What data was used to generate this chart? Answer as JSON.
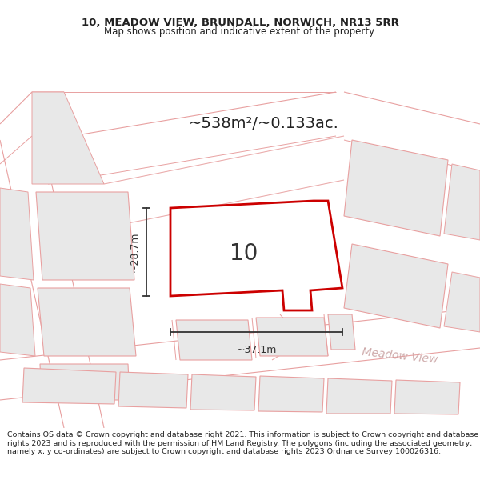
{
  "title_line1": "10, MEADOW VIEW, BRUNDALL, NORWICH, NR13 5RR",
  "title_line2": "Map shows position and indicative extent of the property.",
  "area_text": "~538m²/~0.133ac.",
  "number_label": "10",
  "width_label": "~37.1m",
  "height_label": "~28.7m",
  "street_label": "Meadow View",
  "footer_text": "Contains OS data © Crown copyright and database right 2021. This information is subject to Crown copyright and database rights 2023 and is reproduced with the permission of HM Land Registry. The polygons (including the associated geometry, namely x, y co-ordinates) are subject to Crown copyright and database rights 2023 Ordnance Survey 100026316.",
  "bg_color": "#ffffff",
  "building_fill": "#e8e8e8",
  "building_edge": "#e8a0a0",
  "plot_outline": "#e8a0a0",
  "highlight_edge": "#cc0000",
  "highlight_fill": "#ffffff",
  "street_color": "#c8a0a0",
  "title_color": "#222222",
  "footer_color": "#222222",
  "arrow_color": "#333333",
  "area_color": "#222222"
}
